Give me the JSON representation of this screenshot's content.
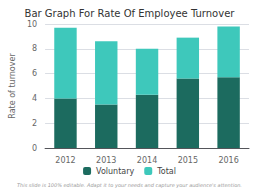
{
  "chart_data": {
    "type": "bar",
    "title": "Bar Graph For Rate Of Employee Turnover",
    "ylabel": "Rate of turnover",
    "categories": [
      "2012",
      "2013",
      "2014",
      "2015",
      "2016"
    ],
    "series": [
      {
        "name": "Voluntary",
        "color": "#1c6b5f",
        "values": [
          4.0,
          3.5,
          4.3,
          5.6,
          5.7
        ]
      },
      {
        "name": "Total",
        "color": "#3ec8bb",
        "values": [
          5.7,
          5.1,
          3.7,
          3.3,
          4.1
        ]
      }
    ],
    "stacked": true,
    "ylim": [
      0,
      10
    ],
    "yticks": [
      0,
      2,
      4,
      6,
      8,
      10
    ],
    "grid": true,
    "legend": "bottom",
    "annotations": [
      "This slide is 100% editable. Adapt it to your needs and capture your audience's attention."
    ]
  }
}
